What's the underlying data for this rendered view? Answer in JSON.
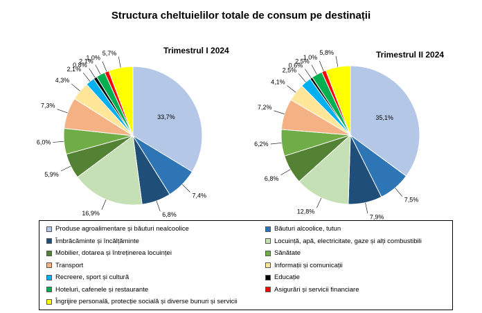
{
  "title": "Structura cheltuielilor totale de consum pe destinații",
  "colors": [
    "#b4c7e7",
    "#2e75b6",
    "#1f4e79",
    "#c5e0b4",
    "#548235",
    "#70ad47",
    "#f4b183",
    "#ffe699",
    "#00b0f0",
    "#000000",
    "#00b050",
    "#ff0000",
    "#ffff00"
  ],
  "legend": {
    "items": [
      "Produse agroalimentare și băuturi nealcoolice",
      "Băuturi alcoolice, tutun",
      "Îmbrăcăminte și încălțăminte",
      "Locuință, apă, electricitate, gaze și alți combustibili",
      "Mobilier,  dotarea și întreținerea locuinței",
      "Sănătate",
      "Transport",
      "Informații și comunicații",
      "Recreere, sport și cultură",
      "Educație",
      "Hoteluri, cafenele și restaurante",
      "Asigurări și servicii financiare",
      "Îngrijire personală, protecție socială și diverse bunuri și servicii"
    ]
  },
  "chart_data": [
    {
      "type": "pie",
      "title": "Trimestrul  I 2024",
      "categories": [
        "Produse agroalimentare și băuturi nealcoolice",
        "Băuturi alcoolice, tutun",
        "Îmbrăcăminte și încălțăminte",
        "Locuință, apă, electricitate, gaze și alți combustibili",
        "Mobilier,  dotarea și întreținerea locuinței",
        "Sănătate",
        "Transport",
        "Informații și comunicații",
        "Recreere, sport și cultură",
        "Educație",
        "Hoteluri, cafenele și restaurante",
        "Asigurări și servicii financiare",
        "Îngrijire personală, protecție socială și diverse bunuri și servicii"
      ],
      "values": [
        33.7,
        7.4,
        6.8,
        16.9,
        5.9,
        6.0,
        7.3,
        4.3,
        2.1,
        0.8,
        2.1,
        1.0,
        5.7
      ],
      "labels": [
        "33,7%",
        "7,4%",
        "6,8%",
        "16,9%",
        "5,9%",
        "6,0%",
        "7,3%",
        "4,3%",
        "2,1%",
        "0,8%",
        "2,1%",
        "1,0%",
        "5,7%"
      ]
    },
    {
      "type": "pie",
      "title": "Trimestrul  II 2024",
      "categories": [
        "Produse agroalimentare și băuturi nealcoolice",
        "Băuturi alcoolice, tutun",
        "Îmbrăcăminte și încălțăminte",
        "Locuință, apă, electricitate, gaze și alți combustibili",
        "Mobilier,  dotarea și întreținerea locuinței",
        "Sănătate",
        "Transport",
        "Informații și comunicații",
        "Recreere, sport și cultură",
        "Educație",
        "Hoteluri, cafenele și restaurante",
        "Asigurări și servicii financiare",
        "Îngrijire personală, protecție socială și diverse bunuri și servicii"
      ],
      "values": [
        35.1,
        7.5,
        7.9,
        12.8,
        6.8,
        6.2,
        7.2,
        4.1,
        2.5,
        0.6,
        2.5,
        1.0,
        5.8
      ],
      "labels": [
        "35,1%",
        "7,5%",
        "7,9%",
        "12,8%",
        "6,8%",
        "6,2%",
        "7,2%",
        "4,1%",
        "2,5%",
        "0,6%",
        "2,5%",
        "1,0%",
        "5,8%"
      ]
    }
  ]
}
